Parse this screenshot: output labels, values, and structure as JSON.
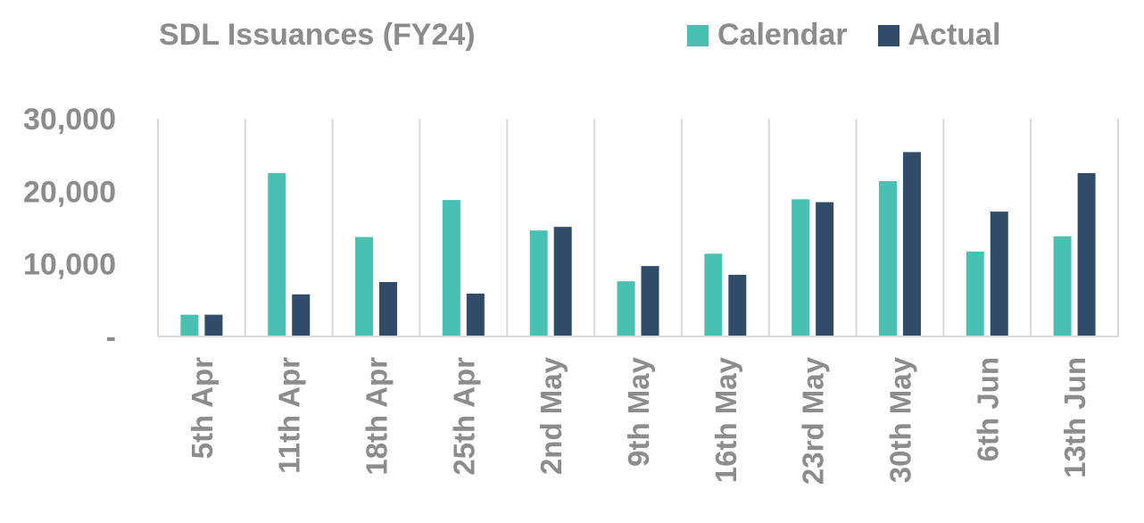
{
  "chart_data": {
    "type": "bar",
    "title": "SDL Issuances (FY24)",
    "categories": [
      "5th Apr",
      "11th Apr",
      "18th Apr",
      "25th Apr",
      "2nd May",
      "9th May",
      "16th May",
      "23rd May",
      "30th May",
      "6th Jun",
      "13th Jun"
    ],
    "series": [
      {
        "name": "Calendar",
        "color": "#48c1b2",
        "values": [
          3000,
          22500,
          13700,
          18800,
          14600,
          7600,
          11400,
          18900,
          21400,
          11700,
          13800
        ]
      },
      {
        "name": "Actual",
        "color": "#314c68",
        "values": [
          3000,
          5800,
          7500,
          5900,
          15100,
          9700,
          8500,
          18500,
          25400,
          17200,
          22500
        ]
      }
    ],
    "ylim": [
      0,
      30000
    ],
    "yticks": [
      {
        "value": 30000,
        "label": "30,000"
      },
      {
        "value": 20000,
        "label": "20,000"
      },
      {
        "value": 10000,
        "label": "10,000"
      },
      {
        "value": 0,
        "label": "-"
      }
    ],
    "grid": "vertical category separators",
    "legend_position": "top-right"
  }
}
